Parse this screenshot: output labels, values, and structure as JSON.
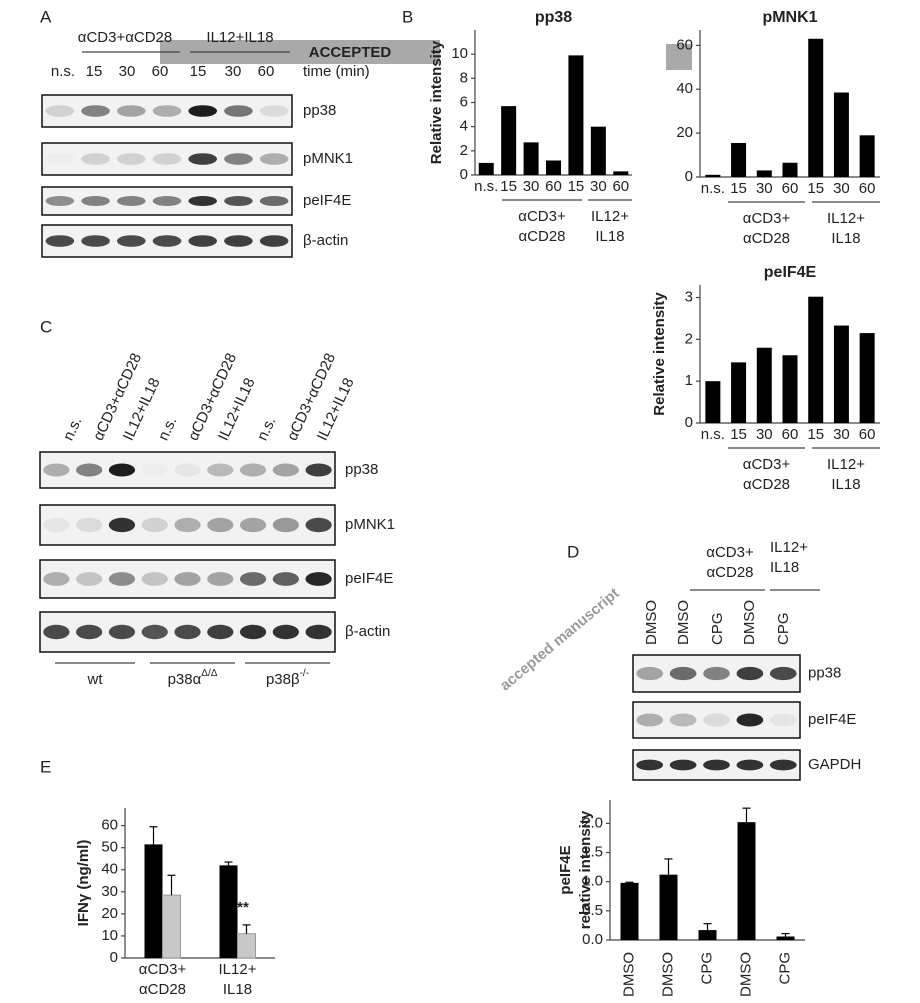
{
  "panels": {
    "letters": [
      "A",
      "B",
      "C",
      "D",
      "E"
    ]
  },
  "banner": "ACCEPTED",
  "watermark": "accepted manuscript",
  "panel_a": {
    "groups": [
      "αCD3+αCD28",
      "IL12+IL18"
    ],
    "lanes": [
      "n.s.",
      "15",
      "30",
      "60",
      "15",
      "30",
      "60"
    ],
    "time_label": "time (min)",
    "rows": [
      "pp38",
      "pMNK1",
      "peIF4E",
      "β-actin"
    ]
  },
  "panel_c": {
    "lanes": [
      "n.s.",
      "αCD3+αCD28",
      "IL12+IL18",
      "n.s.",
      "αCD3+αCD28",
      "IL12+IL18",
      "n.s.",
      "αCD3+αCD28",
      "IL12+IL18"
    ],
    "rows": [
      "pp38",
      "pMNK1",
      "peIF4E",
      "β-actin"
    ],
    "genotypes": [
      {
        "base": "wt"
      },
      {
        "base": "p38α",
        "sup": "Δ/Δ"
      },
      {
        "base": "p38β",
        "sup": "-/-"
      }
    ]
  },
  "panel_d": {
    "groups": [
      [
        "αCD3+",
        "αCD28"
      ],
      [
        "IL12+",
        "IL18"
      ]
    ],
    "lanes": [
      "DMSO",
      "DMSO",
      "CPG",
      "DMSO",
      "CPG"
    ],
    "rows": [
      "pp38",
      "peIF4E",
      "GAPDH"
    ]
  },
  "chart_data": [
    {
      "type": "bar",
      "title": "pp38",
      "y_label": "Relative intensity",
      "categories": [
        "n.s.",
        "15",
        "30",
        "60",
        "15",
        "30",
        "60"
      ],
      "group_labels": [
        [
          "αCD3+",
          "αCD28"
        ],
        [
          "IL12+",
          "IL18"
        ]
      ],
      "values": [
        1.0,
        5.7,
        2.7,
        1.2,
        9.9,
        4.0,
        0.3
      ],
      "color": "#000000",
      "ylim": [
        0,
        12
      ],
      "yticks": [
        0,
        2,
        4,
        6,
        8,
        10
      ]
    },
    {
      "type": "bar",
      "title": "pMNK1",
      "categories": [
        "n.s.",
        "15",
        "30",
        "60",
        "15",
        "30",
        "60"
      ],
      "group_labels": [
        [
          "αCD3+",
          "αCD28"
        ],
        [
          "IL12+",
          "IL18"
        ]
      ],
      "values": [
        1,
        15.5,
        3,
        6.5,
        63,
        38.5,
        19
      ],
      "color": "#000000",
      "ylim": [
        0,
        67
      ],
      "yticks": [
        0,
        20,
        40,
        60
      ]
    },
    {
      "type": "bar",
      "title": "peIF4E",
      "y_label": "Relative intensity",
      "categories": [
        "n.s.",
        "15",
        "30",
        "60",
        "15",
        "30",
        "60"
      ],
      "group_labels": [
        [
          "αCD3+",
          "αCD28"
        ],
        [
          "IL12+",
          "IL18"
        ]
      ],
      "values": [
        1.0,
        1.45,
        1.8,
        1.62,
        3.02,
        2.33,
        2.15
      ],
      "color": "#000000",
      "ylim": [
        0,
        3.3
      ],
      "yticks": [
        0,
        1,
        2,
        3
      ]
    },
    {
      "type": "bar",
      "y_label": [
        "peIF4E",
        "relative intensity"
      ],
      "categories": [
        "DMSO",
        "DMSO",
        "CPG",
        "DMSO",
        "CPG"
      ],
      "values": [
        0.98,
        1.12,
        0.17,
        2.02,
        0.06
      ],
      "errors": [
        0.01,
        0.27,
        0.11,
        0.24,
        0.05
      ],
      "color": "#000000",
      "ylim": [
        0,
        2.4
      ],
      "yticks": [
        {
          "value": 0,
          "label": "0.0"
        },
        {
          "value": 0.5,
          "label": "0.5"
        },
        {
          "value": 1,
          "label": "1.0"
        },
        {
          "value": 1.5,
          "label": "1.5"
        },
        {
          "value": 2,
          "label": "2.0"
        }
      ]
    },
    {
      "type": "grouped_bar",
      "y_label": "IFNγ (ng/ml)",
      "categories": [
        [
          "αCD3+",
          "αCD28"
        ],
        [
          "IL12+",
          "IL18"
        ]
      ],
      "series": [
        {
          "color": "#000000",
          "values": [
            51.5,
            42
          ],
          "errors": [
            8,
            1.5
          ]
        },
        {
          "color": "#c8c8c8",
          "values": [
            28.5,
            11
          ],
          "errors": [
            9,
            4
          ]
        }
      ],
      "annotations": [
        "**"
      ],
      "ylim": [
        0,
        68
      ],
      "yticks": [
        0,
        10,
        20,
        30,
        40,
        50,
        60
      ]
    }
  ]
}
